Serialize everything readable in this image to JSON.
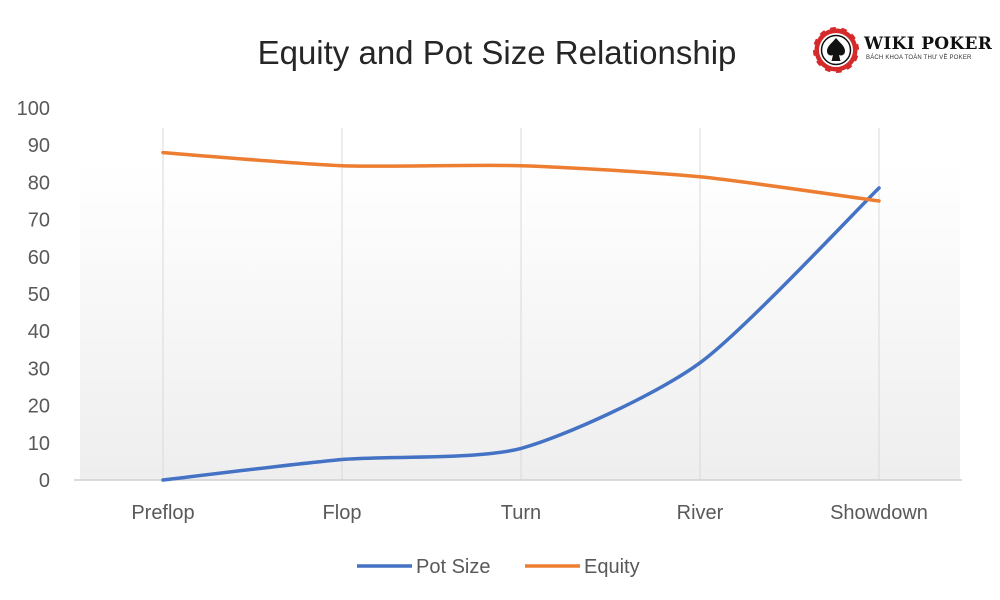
{
  "logo": {
    "name": "WIKI POKER",
    "tagline": "BÁCH KHOA TOÀN THƯ VỀ POKER"
  },
  "chart_data": {
    "type": "line",
    "title": "Equity and Pot Size Relationship",
    "categories": [
      "Preflop",
      "Flop",
      "Turn",
      "River",
      "Showdown"
    ],
    "series": [
      {
        "name": "Pot Size",
        "values": [
          0,
          5.5,
          8.5,
          31.5,
          78.5
        ],
        "color": "#4472C4"
      },
      {
        "name": "Equity",
        "values": [
          88,
          84.5,
          84.5,
          81.5,
          75
        ],
        "color": "#ED7D31"
      }
    ],
    "yticks": [
      "0",
      "10",
      "20",
      "30",
      "40",
      "50",
      "60",
      "70",
      "80",
      "90",
      "100"
    ],
    "ylim": [
      0,
      100
    ],
    "grid": "vertical",
    "legend": "bottom"
  }
}
